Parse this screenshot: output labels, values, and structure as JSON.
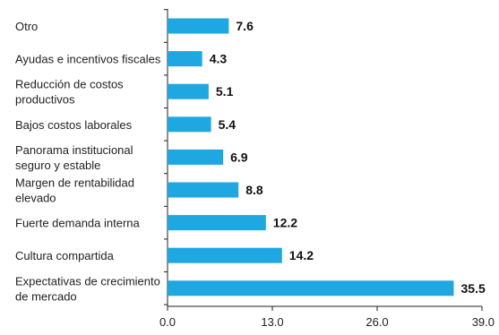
{
  "chart_data": {
    "type": "bar",
    "orientation": "horizontal",
    "categories": [
      [
        "Otro"
      ],
      [
        "Ayudas e incentivos fiscales"
      ],
      [
        "Reducción de costos",
        "productivos"
      ],
      [
        "Bajos costos laborales"
      ],
      [
        "Panorama institucional",
        "seguro y estable"
      ],
      [
        "Margen de rentabilidad",
        "elevado"
      ],
      [
        "Fuerte demanda interna"
      ],
      [
        "Cultura compartida"
      ],
      [
        "Expectativas de crecimiento",
        "de mercado"
      ]
    ],
    "values": [
      7.6,
      4.3,
      5.1,
      5.4,
      6.9,
      8.8,
      12.2,
      14.2,
      35.5
    ],
    "value_labels": [
      "7.6",
      "4.3",
      "5.1",
      "5.4",
      "6.9",
      "8.8",
      "12.2",
      "14.2",
      "35.5"
    ],
    "xlim": [
      0,
      39
    ],
    "xticks": [
      "0.0",
      "13.0",
      "26.0",
      "39.0"
    ],
    "xtick_values": [
      0,
      13,
      26,
      39
    ],
    "grid": false,
    "colors": {
      "bar": "#1ea7e1",
      "axis": "#222222",
      "text": "#222222"
    }
  }
}
